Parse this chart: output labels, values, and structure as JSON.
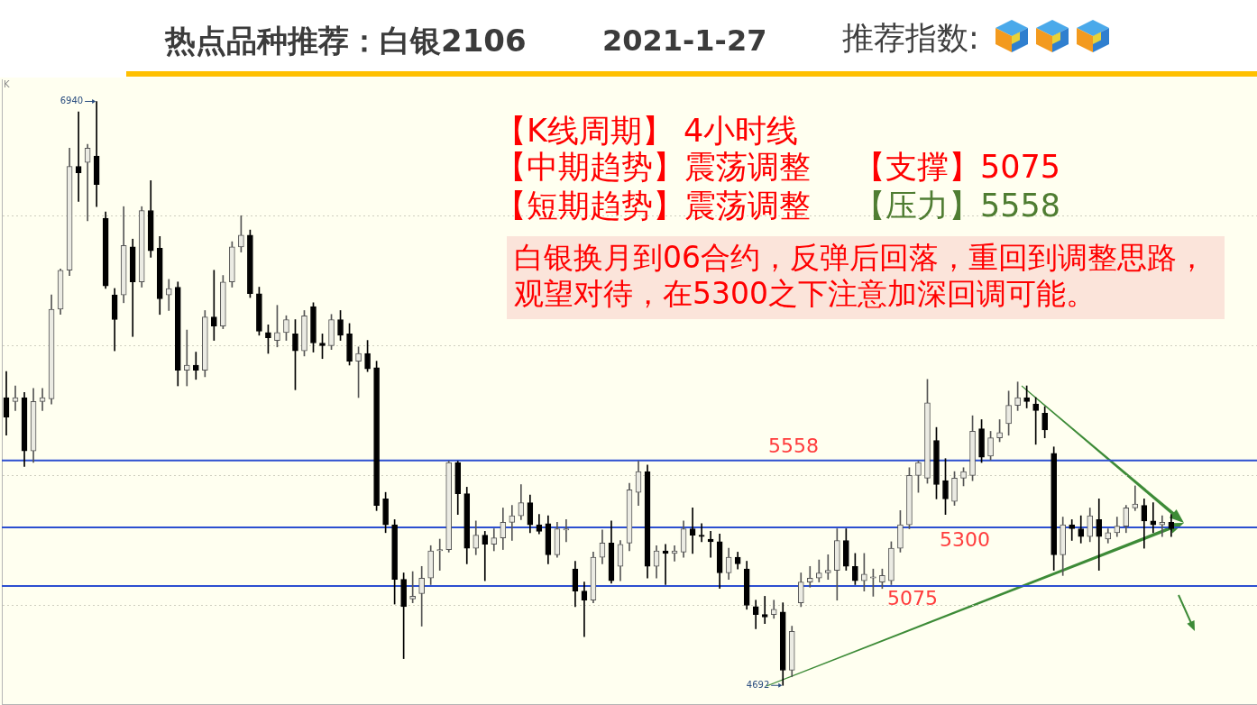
{
  "chart_data": {
    "type": "candlestick",
    "title": "热点品种推荐：白银2106",
    "subtitle": "2021-1-27",
    "categories": [
      null,
      null,
      null,
      null,
      null,
      null,
      null,
      null,
      null,
      null,
      null,
      null,
      null,
      null,
      null,
      null,
      null,
      null,
      null,
      null,
      null,
      null,
      null,
      null,
      null,
      null,
      null,
      null,
      null,
      null,
      null,
      null,
      null,
      null,
      null,
      null,
      null,
      null,
      null,
      null,
      null,
      null,
      null,
      null,
      null,
      null,
      null,
      null,
      null,
      null,
      null,
      null,
      null,
      null,
      null,
      null,
      null,
      null,
      null,
      null,
      null,
      null,
      null,
      null,
      null,
      null,
      null,
      null,
      null,
      null,
      null,
      null,
      null,
      null,
      null,
      null,
      null,
      null,
      null,
      null,
      null,
      null,
      null,
      null,
      null,
      null,
      null,
      null,
      null,
      null,
      null,
      null,
      null,
      null,
      null,
      null,
      null,
      null,
      null,
      null,
      null,
      null,
      null,
      null,
      null,
      null,
      null,
      null,
      null,
      null,
      null,
      null,
      null,
      null,
      null,
      null,
      null,
      null,
      null,
      null,
      null,
      null,
      null,
      null,
      null,
      null,
      null,
      null,
      null,
      null,
      null,
      null,
      null,
      null,
      null,
      null,
      null,
      null,
      null
    ],
    "ohlc": [
      [
        5800,
        5900,
        5655,
        5725
      ],
      [
        5785,
        5845,
        5750,
        5800
      ],
      [
        5800,
        5820,
        5535,
        5595
      ],
      [
        5595,
        5835,
        5550,
        5785
      ],
      [
        5785,
        5835,
        5750,
        5800
      ],
      [
        5795,
        6195,
        5775,
        6140
      ],
      [
        6140,
        6295,
        6120,
        6290
      ],
      [
        6290,
        6760,
        6270,
        6690
      ],
      [
        6690,
        6900,
        6555,
        6665
      ],
      [
        6705,
        6775,
        6480,
        6760
      ],
      [
        6730,
        6940,
        6535,
        6620
      ],
      [
        6490,
        6515,
        6220,
        6230
      ],
      [
        6195,
        6220,
        5980,
        6100
      ],
      [
        6195,
        6535,
        6165,
        6385
      ],
      [
        6380,
        6410,
        6035,
        6245
      ],
      [
        6245,
        6535,
        6225,
        6520
      ],
      [
        6520,
        6635,
        6340,
        6365
      ],
      [
        6375,
        6420,
        6120,
        6180
      ],
      [
        6195,
        6255,
        6135,
        6220
      ],
      [
        6225,
        6245,
        5845,
        5905
      ],
      [
        5905,
        6060,
        5845,
        5925
      ],
      [
        5925,
        5975,
        5870,
        5905
      ],
      [
        5905,
        6135,
        5880,
        6110
      ],
      [
        6110,
        6290,
        6020,
        6075
      ],
      [
        6075,
        6270,
        6065,
        6245
      ],
      [
        6245,
        6400,
        6225,
        6380
      ],
      [
        6380,
        6500,
        6360,
        6425
      ],
      [
        6425,
        6445,
        6185,
        6200
      ],
      [
        6200,
        6225,
        6040,
        6055
      ],
      [
        6050,
        6080,
        5970,
        6030
      ],
      [
        6020,
        6155,
        5995,
        6050
      ],
      [
        6050,
        6115,
        6020,
        6100
      ],
      [
        6045,
        6100,
        5830,
        5980
      ],
      [
        5980,
        6135,
        5960,
        6115
      ],
      [
        6150,
        6165,
        5975,
        6010
      ],
      [
        6010,
        6045,
        5950,
        6000
      ],
      [
        6000,
        6120,
        5985,
        6100
      ],
      [
        6100,
        6135,
        6020,
        6040
      ],
      [
        6045,
        6085,
        5925,
        5940
      ],
      [
        5940,
        5995,
        5800,
        5970
      ],
      [
        5970,
        6020,
        5900,
        5910
      ],
      [
        5915,
        5940,
        5365,
        5385
      ],
      [
        5410,
        5435,
        5280,
        5310
      ],
      [
        5310,
        5330,
        5005,
        5100
      ],
      [
        5100,
        5125,
        4795,
        4995
      ],
      [
        5025,
        5130,
        5010,
        5035
      ],
      [
        5045,
        5150,
        4920,
        5105
      ],
      [
        5105,
        5230,
        5080,
        5210
      ],
      [
        5210,
        5255,
        5135,
        5215
      ],
      [
        5215,
        5555,
        5205,
        5550
      ],
      [
        5550,
        5555,
        5350,
        5430
      ],
      [
        5430,
        5455,
        5160,
        5220
      ],
      [
        5220,
        5325,
        5195,
        5270
      ],
      [
        5270,
        5285,
        5095,
        5235
      ],
      [
        5235,
        5295,
        5210,
        5260
      ],
      [
        5260,
        5375,
        5215,
        5320
      ],
      [
        5320,
        5385,
        5250,
        5345
      ],
      [
        5345,
        5465,
        5330,
        5395
      ],
      [
        5395,
        5425,
        5280,
        5310
      ],
      [
        5310,
        5350,
        5275,
        5285
      ],
      [
        5315,
        5345,
        5160,
        5195
      ],
      [
        5195,
        5320,
        5185,
        5295
      ],
      [
        5290,
        5330,
        5245,
        5295
      ],
      [
        5140,
        5170,
        4995,
        5055
      ],
      [
        5055,
        5090,
        4880,
        5020
      ],
      [
        5020,
        5205,
        5010,
        5185
      ],
      [
        5185,
        5290,
        5160,
        5240
      ],
      [
        5240,
        5325,
        5085,
        5095
      ],
      [
        5150,
        5250,
        5095,
        5235
      ],
      [
        5240,
        5470,
        5210,
        5445
      ],
      [
        5435,
        5555,
        5385,
        5515
      ],
      [
        5515,
        5540,
        5105,
        5150
      ],
      [
        5150,
        5230,
        5105,
        5210
      ],
      [
        5210,
        5235,
        5080,
        5200
      ],
      [
        5200,
        5230,
        5170,
        5210
      ],
      [
        5205,
        5325,
        5185,
        5295
      ],
      [
        5295,
        5375,
        5200,
        5270
      ],
      [
        5270,
        5315,
        5245,
        5265
      ],
      [
        5255,
        5285,
        5185,
        5245
      ],
      [
        5245,
        5275,
        5065,
        5125
      ],
      [
        5125,
        5220,
        5100,
        5185
      ],
      [
        5185,
        5205,
        5140,
        5160
      ],
      [
        5140,
        5170,
        4985,
        5000
      ],
      [
        4995,
        5020,
        4910,
        4965
      ],
      [
        4965,
        5035,
        4930,
        4955
      ],
      [
        4965,
        5020,
        4950,
        4985
      ],
      [
        4975,
        5010,
        4692,
        4750
      ],
      [
        4750,
        4920,
        4725,
        4900
      ],
      [
        5010,
        5125,
        4995,
        5090
      ],
      [
        5090,
        5150,
        5070,
        5105
      ],
      [
        5105,
        5175,
        5090,
        5125
      ],
      [
        5125,
        5195,
        5100,
        5135
      ],
      [
        5135,
        5295,
        5020,
        5250
      ],
      [
        5250,
        5295,
        5135,
        5150
      ],
      [
        5150,
        5200,
        5080,
        5095
      ],
      [
        5095,
        5200,
        5055,
        5120
      ],
      [
        5105,
        5140,
        5035,
        5110
      ],
      [
        5090,
        5140,
        5065,
        5115
      ],
      [
        5095,
        5245,
        5080,
        5220
      ],
      [
        5220,
        5365,
        5205,
        5310
      ],
      [
        5310,
        5530,
        5295,
        5500
      ],
      [
        5500,
        5555,
        5435,
        5550
      ],
      [
        5490,
        5870,
        5470,
        5780
      ],
      [
        5635,
        5685,
        5410,
        5465
      ],
      [
        5480,
        5565,
        5350,
        5410
      ],
      [
        5400,
        5515,
        5385,
        5490
      ],
      [
        5490,
        5530,
        5460,
        5515
      ],
      [
        5500,
        5730,
        5480,
        5670
      ],
      [
        5680,
        5715,
        5550,
        5570
      ],
      [
        5575,
        5670,
        5560,
        5645
      ],
      [
        5645,
        5715,
        5630,
        5665
      ],
      [
        5700,
        5825,
        5655,
        5770
      ],
      [
        5770,
        5860,
        5750,
        5800
      ],
      [
        5800,
        5845,
        5760,
        5785
      ],
      [
        5775,
        5800,
        5620,
        5750
      ],
      [
        5740,
        5765,
        5645,
        5675
      ],
      [
        5585,
        5610,
        5135,
        5195
      ],
      [
        5195,
        5340,
        5115,
        5310
      ],
      [
        5310,
        5330,
        5250,
        5295
      ],
      [
        5295,
        5345,
        5240,
        5265
      ],
      [
        5265,
        5375,
        5245,
        5345
      ],
      [
        5330,
        5410,
        5135,
        5265
      ],
      [
        5255,
        5295,
        5240,
        5280
      ],
      [
        5280,
        5340,
        5265,
        5305
      ],
      [
        5305,
        5385,
        5280,
        5375
      ],
      [
        5375,
        5460,
        5365,
        5390
      ],
      [
        5385,
        5410,
        5220,
        5325
      ],
      [
        5325,
        5395,
        5280,
        5310
      ],
      [
        5310,
        5345,
        5265,
        5320
      ],
      [
        5320,
        5350,
        5265,
        5295
      ],
      null,
      null,
      null,
      null,
      null,
      null,
      null,
      null,
      null
    ],
    "ylim": [
      4620,
      7025
    ],
    "yticks": [
      {
        "value": 5000,
        "label": null
      },
      {
        "value": 5500,
        "label": null
      },
      {
        "value": 6000,
        "label": null
      },
      {
        "value": 6500,
        "label": null
      }
    ],
    "grid": "y",
    "tick_labels": false,
    "ref_lines": [
      {
        "axis": "y",
        "value": 5558,
        "label": "5558",
        "color": "#2c4fd0"
      },
      {
        "axis": "y",
        "value": 5300,
        "label": "5300",
        "color": "#2c4fd0"
      },
      {
        "axis": "y",
        "value": 5075,
        "label": "5075",
        "color": "#2c4fd0"
      }
    ],
    "annotations": [
      "K",
      "推荐指数:",
      "【K线周期】 4小时线",
      "【中期趋势】震荡调整",
      "【支撑】5075",
      "【短期趋势】震荡调整",
      "【压力】5558",
      "白银换月到06合约，反弹后回落，重回到调整思路，观望对待，在5300之下注意加深回调可能。",
      "6940",
      "4692"
    ]
  }
}
